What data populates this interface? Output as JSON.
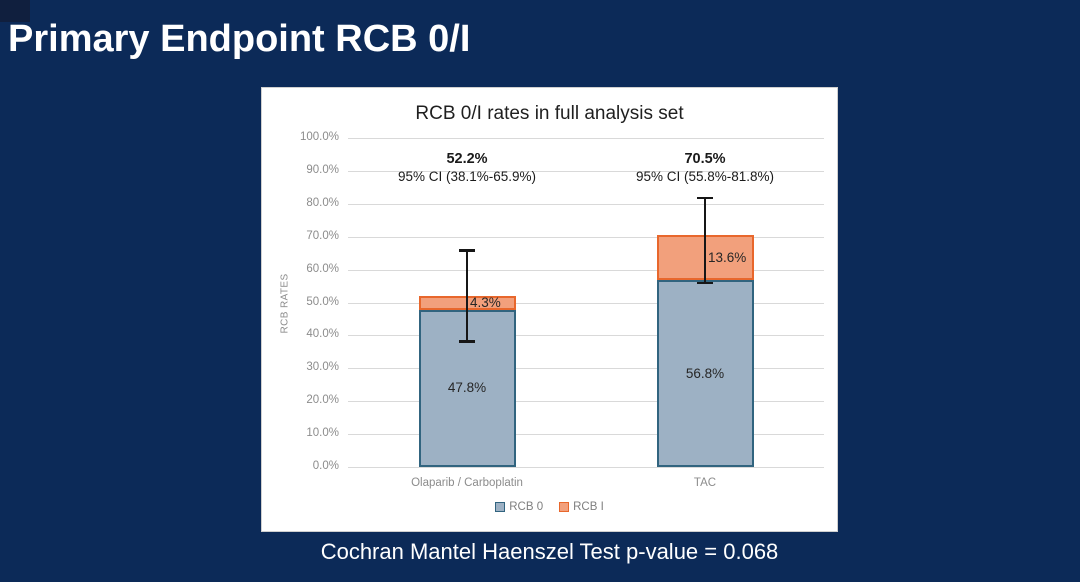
{
  "slide": {
    "title": "Primary Endpoint RCB 0/I",
    "caption": "Cochran Mantel Haenszel Test p-value = 0.068",
    "background_color": "#0c2a58",
    "panel_color": "#ffffff"
  },
  "chart_data": {
    "type": "bar",
    "stacked": true,
    "title": "RCB 0/I rates in full analysis set",
    "xlabel": "",
    "ylabel": "RCB RATES",
    "ylim": [
      0,
      100
    ],
    "grid": true,
    "legend_position": "bottom",
    "yticks": [
      "0.0%",
      "10.0%",
      "20.0%",
      "30.0%",
      "40.0%",
      "50.0%",
      "60.0%",
      "70.0%",
      "80.0%",
      "90.0%",
      "100.0%"
    ],
    "categories": [
      "Olaparib / Carboplatin",
      "TAC"
    ],
    "series": [
      {
        "name": "RCB 0",
        "fill": "#9db1c4",
        "border": "#31647f",
        "values": [
          47.8,
          56.8
        ],
        "labels": [
          "47.8%",
          "56.8%"
        ]
      },
      {
        "name": "RCB I",
        "fill": "#f2a07c",
        "border": "#e8672c",
        "values": [
          4.3,
          13.6
        ],
        "labels": [
          "4.3%",
          "13.6%"
        ]
      }
    ],
    "totals": [
      {
        "label": "52.2%",
        "ci_text": "95% CI (38.1%-65.9%)",
        "ci_low": 38.1,
        "ci_high": 65.9
      },
      {
        "label": "70.5%",
        "ci_text": "95% CI (55.8%-81.8%)",
        "ci_low": 55.8,
        "ci_high": 81.8
      }
    ],
    "gridline_color": "#d9d9d9",
    "error_bar_color": "#161616"
  }
}
